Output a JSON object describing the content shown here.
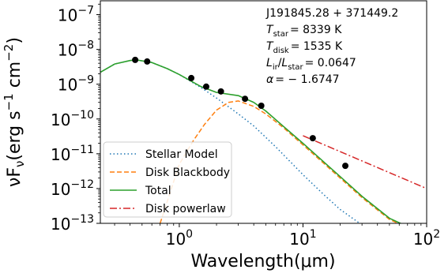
{
  "chart_data": {
    "type": "line",
    "x_scale": "log",
    "y_scale": "log",
    "xlim": [
      0.23,
      100
    ],
    "ylim": [
      1e-13,
      2.5e-07
    ],
    "xlabel": "Wavelength(μm)",
    "ylabel": "νF_ν(erg s^-1 cm^-2)",
    "x_ticks": [
      {
        "value": 1,
        "label": "10",
        "sup": "0"
      },
      {
        "value": 10,
        "label": "10",
        "sup": "1"
      },
      {
        "value": 100,
        "label": "10",
        "sup": "2"
      }
    ],
    "y_ticks": [
      {
        "value": 1e-13,
        "label": "10",
        "sup": "−13"
      },
      {
        "value": 1e-12,
        "label": "10",
        "sup": "−12"
      },
      {
        "value": 1e-11,
        "label": "10",
        "sup": "−11"
      },
      {
        "value": 1e-10,
        "label": "10",
        "sup": "−10"
      },
      {
        "value": 1e-09,
        "label": "10",
        "sup": "−9"
      },
      {
        "value": 1e-08,
        "label": "10",
        "sup": "−8"
      },
      {
        "value": 1e-07,
        "label": "10",
        "sup": "−7"
      }
    ],
    "annotation": {
      "object": "J191845.28 + 371449.2",
      "t_star": "= 8339 K",
      "t_disk": "= 1535 K",
      "l_ratio": "= 0.0647",
      "alpha": "= − 1.6747"
    },
    "legend_position": "lower-left",
    "series": [
      {
        "name": "Stellar Model",
        "color": "#1f77b4",
        "style": "dotted",
        "x": [
          0.23,
          0.3,
          0.4,
          0.45,
          0.6,
          0.8,
          1.0,
          1.5,
          2.0,
          3.0,
          4.0,
          6.0,
          10.0,
          15.0,
          20.0,
          30.0,
          40.0
        ],
        "y": [
          2.2e-09,
          3.8e-09,
          4.8e-09,
          5e-09,
          4.2e-09,
          2.8e-09,
          1.9e-09,
          8e-10,
          4e-10,
          1.4e-10,
          6.3e-11,
          1.6e-11,
          2.5e-12,
          6.3e-13,
          2.5e-13,
          9e-14,
          5e-14
        ]
      },
      {
        "name": "Disk Blackbody",
        "color": "#ff7f0e",
        "style": "dashed",
        "x": [
          0.7,
          1.0,
          1.3,
          1.6,
          2.0,
          2.5,
          3.0,
          4.0,
          5.0,
          7.0,
          10.0,
          15.0,
          20.0,
          30.0,
          50.0,
          80.0
        ],
        "y": [
          1e-13,
          5e-12,
          2.4e-11,
          7e-11,
          1.8e-10,
          3e-10,
          3.3e-10,
          2.3e-10,
          1.4e-10,
          5.5e-11,
          1.8e-11,
          5e-12,
          2e-12,
          5.5e-13,
          1.3e-13,
          6e-14
        ]
      },
      {
        "name": "Total",
        "color": "#2ca02c",
        "style": "solid",
        "x": [
          0.23,
          0.3,
          0.4,
          0.45,
          0.6,
          0.8,
          1.0,
          1.5,
          2.0,
          3.0,
          4.0,
          5.0,
          7.0,
          10.0,
          15.0,
          20.0,
          30.0,
          50.0,
          80.0
        ],
        "y": [
          2.2e-09,
          3.8e-09,
          4.8e-09,
          5e-09,
          4.2e-09,
          2.8e-09,
          1.9e-09,
          8.5e-10,
          5.8e-10,
          4.7e-10,
          3e-10,
          1.7e-10,
          6e-11,
          2e-11,
          5.5e-12,
          2.2e-12,
          6e-13,
          1.4e-13,
          6.5e-14
        ]
      },
      {
        "name": "Disk powerlaw",
        "color": "#d62728",
        "style": "dashdot",
        "x": [
          10.0,
          100.0
        ],
        "y": [
          3.3e-11,
          1e-12
        ]
      },
      {
        "name": "Observations",
        "color": "#000000",
        "style": "markers",
        "x": [
          0.44,
          0.55,
          1.25,
          1.65,
          2.17,
          3.4,
          4.6,
          12.0,
          22.0
        ],
        "y": [
          5e-09,
          4.5e-09,
          1.5e-09,
          8.5e-10,
          6.2e-10,
          3.8e-10,
          2.4e-10,
          2.8e-11,
          4.5e-12
        ]
      }
    ]
  }
}
